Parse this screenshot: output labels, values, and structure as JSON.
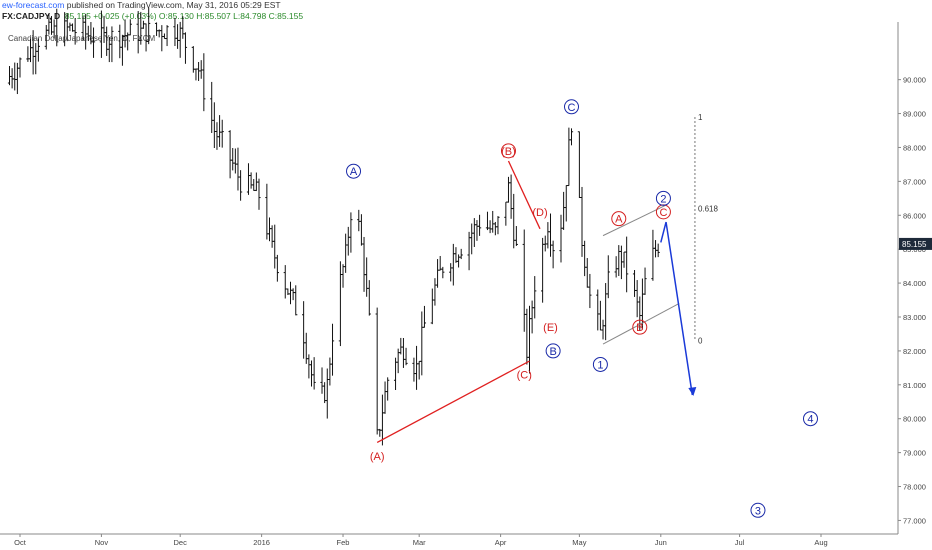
{
  "header": {
    "brand": "ew-forecast.com",
    "published": " published on TradingView.com, May 31, 2016 05:29 EST",
    "symbol": "FX:CADJPY, D",
    "last": "85.155",
    "change": "+0.025 (+0.03%)",
    "open": "O:85.130",
    "high": "H:85.507",
    "low": "L:84.798",
    "close": "C:85.155"
  },
  "symbol_title": "Canadian Dollar/Japanese Yen, D, FXCM",
  "chart_data": {
    "type": "candlestick",
    "ylim": [
      76.6,
      91.7
    ],
    "y_ticks": [
      "77.000",
      "78.000",
      "79.000",
      "80.000",
      "81.000",
      "82.000",
      "83.000",
      "84.000",
      "85.000",
      "86.000",
      "87.000",
      "88.000",
      "89.000",
      "90.000"
    ],
    "x_ticks": [
      {
        "label": "Oct",
        "date": "2015-10-01"
      },
      {
        "label": "Nov",
        "date": "2015-11-01"
      },
      {
        "label": "Dec",
        "date": "2015-12-01"
      },
      {
        "label": "2016",
        "date": "2016-01-01"
      },
      {
        "label": "Feb",
        "date": "2016-02-01"
      },
      {
        "label": "Mar",
        "date": "2016-03-01"
      },
      {
        "label": "Apr",
        "date": "2016-04-01"
      },
      {
        "label": "May",
        "date": "2016-05-01"
      },
      {
        "label": "Jun",
        "date": "2016-06-01"
      },
      {
        "label": "Jul",
        "date": "2016-07-01"
      },
      {
        "label": "Aug",
        "date": "2016-08-01"
      }
    ],
    "last_price": "85.155",
    "price_path": [
      [
        "2015-09-25",
        89.9
      ],
      [
        "2015-10-02",
        90.6
      ],
      [
        "2015-10-09",
        91.3
      ],
      [
        "2015-10-20",
        91.5
      ],
      [
        "2015-11-01",
        91.2
      ],
      [
        "2015-11-15",
        91.4
      ],
      [
        "2015-11-30",
        91.5
      ],
      [
        "2015-12-08",
        90.3
      ],
      [
        "2015-12-14",
        88.5
      ],
      [
        "2015-12-18",
        88.0
      ],
      [
        "2015-12-24",
        87.0
      ],
      [
        "2015-12-31",
        86.6
      ],
      [
        "2016-01-05",
        85.0
      ],
      [
        "2016-01-11",
        83.8
      ],
      [
        "2016-01-16",
        82.9
      ],
      [
        "2016-01-20",
        81.3
      ],
      [
        "2016-01-22",
        80.3
      ],
      [
        "2016-01-26",
        81.0
      ],
      [
        "2016-01-29",
        83.3
      ],
      [
        "2016-02-02",
        84.8
      ],
      [
        "2016-02-05",
        86.8
      ],
      [
        "2016-02-09",
        84.5
      ],
      [
        "2016-02-12",
        82.0
      ],
      [
        "2016-02-14",
        79.4
      ],
      [
        "2016-02-19",
        81.6
      ],
      [
        "2016-02-24",
        82.1
      ],
      [
        "2016-02-29",
        81.5
      ],
      [
        "2016-03-04",
        83.2
      ],
      [
        "2016-03-10",
        84.5
      ],
      [
        "2016-03-17",
        85.1
      ],
      [
        "2016-03-24",
        85.8
      ],
      [
        "2016-03-30",
        85.5
      ],
      [
        "2016-04-04",
        86.8
      ],
      [
        "2016-04-07",
        85.0
      ],
      [
        "2016-04-11",
        82.0
      ],
      [
        "2016-04-14",
        84.0
      ],
      [
        "2016-04-19",
        85.8
      ],
      [
        "2016-04-22",
        84.8
      ],
      [
        "2016-04-25",
        86.3
      ],
      [
        "2016-04-28",
        88.8
      ],
      [
        "2016-05-02",
        85.3
      ],
      [
        "2016-05-05",
        83.6
      ],
      [
        "2016-05-09",
        82.5
      ],
      [
        "2016-05-13",
        84.5
      ],
      [
        "2016-05-17",
        84.8
      ],
      [
        "2016-05-20",
        84.2
      ],
      [
        "2016-05-24",
        83.0
      ],
      [
        "2016-05-27",
        84.5
      ],
      [
        "2016-05-31",
        85.15
      ]
    ],
    "annotations": [
      {
        "label": "(A)",
        "date": "2016-02-14",
        "price": 78.9,
        "color": "red",
        "circled": false
      },
      {
        "label": "(B)",
        "date": "2016-04-04",
        "price": 87.9,
        "color": "red",
        "circled": true
      },
      {
        "label": "(C)",
        "date": "2016-04-10",
        "price": 81.3,
        "color": "red",
        "circled": false
      },
      {
        "label": "(D)",
        "date": "2016-04-16",
        "price": 86.1,
        "color": "red",
        "circled": false
      },
      {
        "label": "(E)",
        "date": "2016-04-20",
        "price": 82.7,
        "color": "red",
        "circled": false
      },
      {
        "label": "A",
        "date": "2016-02-05",
        "price": 87.3,
        "color": "blue",
        "circled": true
      },
      {
        "label": "B",
        "date": "2016-04-21",
        "price": 82.0,
        "color": "blue",
        "circled": true
      },
      {
        "label": "C",
        "date": "2016-04-28",
        "price": 89.2,
        "color": "blue",
        "circled": true
      },
      {
        "label": "A",
        "date": "2016-05-16",
        "price": 85.9,
        "color": "red",
        "circled": true
      },
      {
        "label": "B",
        "date": "2016-05-24",
        "price": 82.7,
        "color": "red",
        "circled": true
      },
      {
        "label": "C",
        "date": "2016-06-02",
        "price": 86.1,
        "color": "red",
        "circled": true
      },
      {
        "label": "1",
        "date": "2016-05-09",
        "price": 81.6,
        "color": "blue",
        "circled": true
      },
      {
        "label": "2",
        "date": "2016-06-02",
        "price": 86.5,
        "color": "blue",
        "circled": true
      },
      {
        "label": "3",
        "date": "2016-07-08",
        "price": 77.3,
        "color": "blue",
        "circled": true
      },
      {
        "label": "4",
        "date": "2016-07-28",
        "price": 80.0,
        "color": "blue",
        "circled": true
      }
    ],
    "red_lines": [
      [
        [
          "2016-02-14",
          79.3
        ],
        [
          "2016-04-12",
          81.7
        ]
      ],
      [
        [
          "2016-04-04",
          87.6
        ],
        [
          "2016-04-16",
          85.6
        ]
      ]
    ],
    "channel_lines": [
      [
        [
          "2016-05-10",
          85.4
        ],
        [
          "2016-06-03",
          86.3
        ]
      ],
      [
        [
          "2016-05-10",
          82.2
        ],
        [
          "2016-06-08",
          83.4
        ]
      ]
    ],
    "forecast_arrow": [
      [
        "2016-06-01",
        85.2
      ],
      [
        "2016-06-03",
        85.8
      ],
      [
        "2016-06-13",
        80.7
      ]
    ],
    "fib_levels": [
      {
        "label": "1",
        "price": 88.9
      },
      {
        "label": "0.618",
        "price": 86.2
      },
      {
        "label": "0",
        "price": 82.3
      }
    ],
    "fib_date": "2016-06-14"
  }
}
